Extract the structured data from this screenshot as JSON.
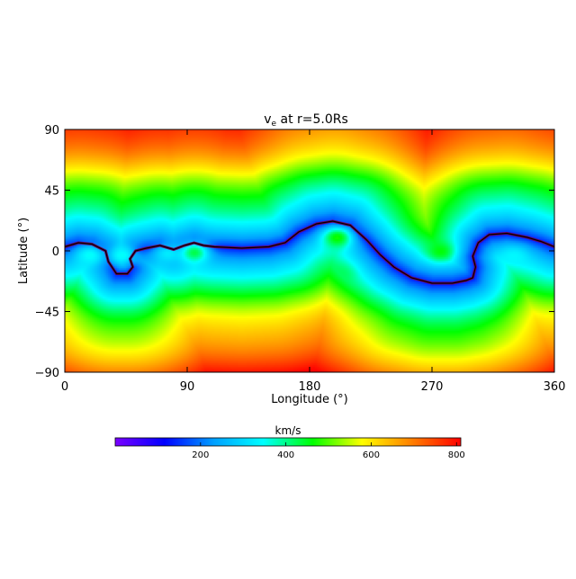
{
  "chart_data": {
    "type": "heatmap",
    "title": "v",
    "title_subscript": "e",
    "title_suffix": " at r=5.0Rs",
    "xlabel": "Longitude (°)",
    "ylabel": "Latitude (°)",
    "xlim": [
      0,
      360
    ],
    "ylim": [
      -90,
      90
    ],
    "x_ticks": [
      0,
      90,
      180,
      270,
      360
    ],
    "y_ticks": [
      -90,
      -45,
      0,
      45,
      90
    ],
    "x_tick_labels": [
      "0",
      "90",
      "180",
      "270",
      "360"
    ],
    "y_tick_labels": [
      "−90",
      "−45",
      "0",
      "45",
      "90"
    ],
    "colorbar": {
      "label": "km/s",
      "range": [
        0,
        810
      ],
      "ticks": [
        200,
        400,
        600,
        800
      ],
      "tick_labels": [
        "200",
        "400",
        "600",
        "800"
      ],
      "colors": [
        "#7a00ff",
        "#0000ff",
        "#00a0ff",
        "#00ffff",
        "#00ff00",
        "#ffff00",
        "#ff8000",
        "#ff0000"
      ]
    },
    "neutral_line_color": "#6e0060",
    "neutral_line": [
      [
        0,
        3
      ],
      [
        10,
        6
      ],
      [
        20,
        5
      ],
      [
        30,
        0
      ],
      [
        32,
        -8
      ],
      [
        38,
        -17
      ],
      [
        46,
        -17
      ],
      [
        50,
        -12
      ],
      [
        48,
        -6
      ],
      [
        52,
        0
      ],
      [
        60,
        2
      ],
      [
        70,
        4
      ],
      [
        80,
        1
      ],
      [
        88,
        4
      ],
      [
        95,
        6
      ],
      [
        102,
        4
      ],
      [
        110,
        3
      ],
      [
        130,
        2
      ],
      [
        150,
        3
      ],
      [
        162,
        6
      ],
      [
        172,
        14
      ],
      [
        185,
        20
      ],
      [
        197,
        22
      ],
      [
        210,
        19
      ],
      [
        222,
        8
      ],
      [
        232,
        -3
      ],
      [
        242,
        -12
      ],
      [
        255,
        -20
      ],
      [
        270,
        -24
      ],
      [
        285,
        -24
      ],
      [
        295,
        -22
      ],
      [
        300,
        -20
      ],
      [
        302,
        -12
      ],
      [
        300,
        -4
      ],
      [
        304,
        6
      ],
      [
        312,
        12
      ],
      [
        325,
        13
      ],
      [
        340,
        10
      ],
      [
        350,
        7
      ],
      [
        360,
        3
      ]
    ],
    "fast_wind_max": 810,
    "slow_wind_min": 120,
    "slow_wind_islands": [
      {
        "lon": 18,
        "lat": -3,
        "v": 350
      },
      {
        "lon": 42,
        "lat": -3,
        "v": 350
      },
      {
        "lon": 75,
        "lat": -2,
        "v": 320
      },
      {
        "lon": 95,
        "lat": -1,
        "v": 430
      },
      {
        "lon": 200,
        "lat": 10,
        "v": 470
      },
      {
        "lon": 202,
        "lat": -17,
        "v": 420
      },
      {
        "lon": 276,
        "lat": 0,
        "v": 460
      },
      {
        "lon": 270,
        "lat": 24,
        "v": 390
      },
      {
        "lon": 330,
        "lat": -4,
        "v": 340
      }
    ]
  }
}
